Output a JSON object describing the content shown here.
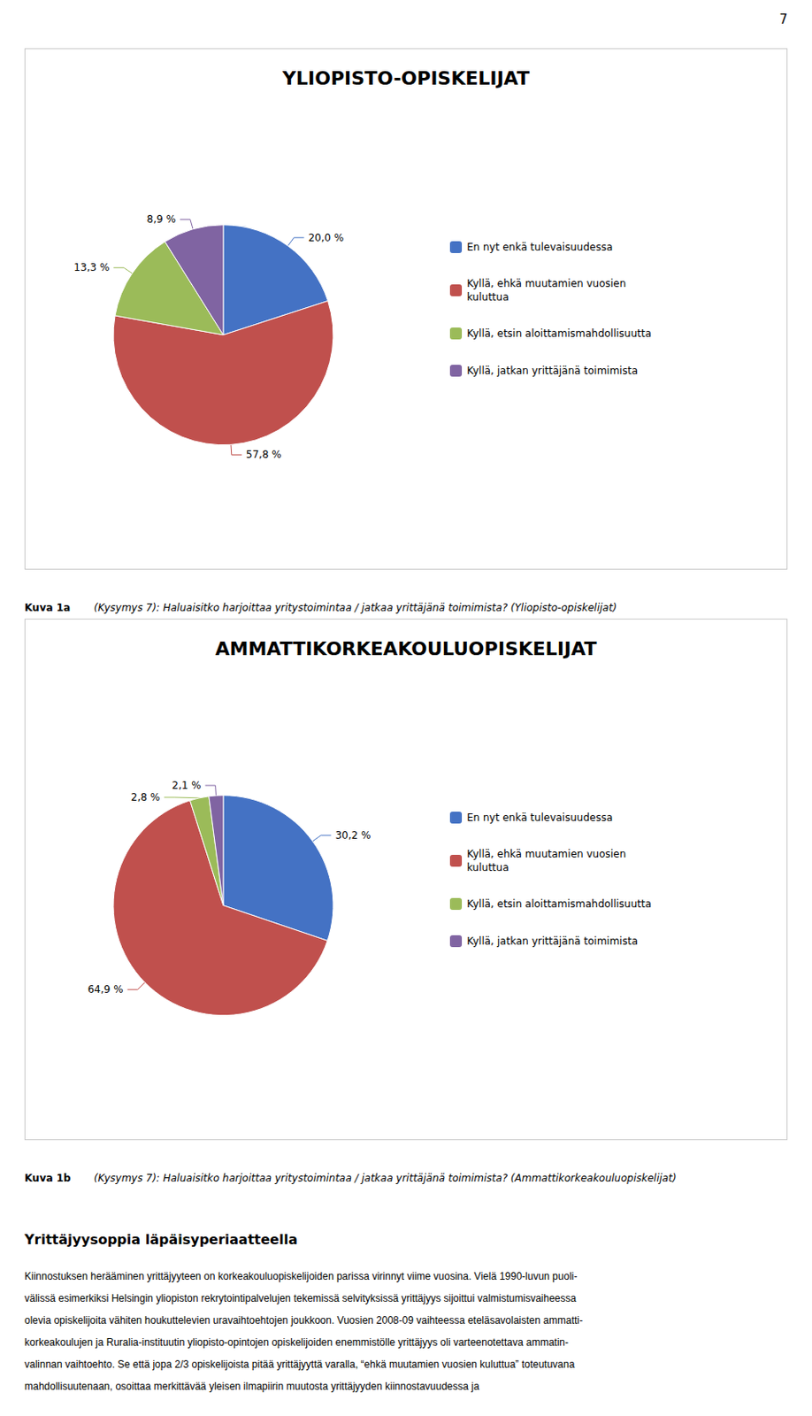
{
  "page_number": "7",
  "chart_data": [
    {
      "type": "pie",
      "title": "YLIOPISTO-OPISKELIJAT",
      "categories": [
        "En nyt enkä tulevaisuudessa",
        "Kyllä, ehkä muutamien vuosien\nkuluttua",
        "Kyllä, etsin aloittamismahdollisuutta",
        "Kyllä, jatkan yrittäjänä toimimista"
      ],
      "values": [
        20.0,
        57.8,
        13.3,
        8.9
      ],
      "value_labels": [
        "20,0 %",
        "57,8 %",
        "13,3 %",
        "8,9 %"
      ],
      "colors": [
        "#4472C4",
        "#C0504D",
        "#9BBB59",
        "#8064A2"
      ],
      "data_labels": true,
      "legend": "right",
      "annotations": [
        "Kuva 1a",
        "(Kysymys 7): Haluaisitko harjoittaa yritystoimintaa / jatkaa yrittäjänä toimimista? (Yliopisto-opiskelijat)"
      ]
    },
    {
      "type": "pie",
      "title": "AMMATTIKORKEAKOULUOPISKELIJAT",
      "categories": [
        "En nyt enkä tulevaisuudessa",
        "Kyllä, ehkä muutamien vuosien\nkuluttua",
        "Kyllä, etsin aloittamismahdollisuutta",
        "Kyllä, jatkan yrittäjänä toimimista"
      ],
      "values": [
        30.2,
        64.9,
        2.8,
        2.1
      ],
      "value_labels": [
        "30,2 %",
        "64,9 %",
        "2,8 %",
        "2,1 %"
      ],
      "colors": [
        "#4472C4",
        "#C0504D",
        "#9BBB59",
        "#8064A2"
      ],
      "data_labels": true,
      "legend": "right",
      "annotations": [
        "Kuva 1b",
        "(Kysymys 7): Haluaisitko harjoittaa yritystoimintaa / jatkaa yrittäjänä toimimista? (Ammattikorkeakouluopiskelijat)"
      ]
    }
  ],
  "body_title": "Yrittäjyysoppia läpäisyperiaatteella",
  "body_lines": [
    "Kiinnostuksen herääminen yrittäjyyteen on korkeakouluopiskelijoiden parissa virinnyt viime vuosina. Vielä 1990-luvun puoli-",
    "välissä esimerkiksi Helsingin yliopiston rekrytointipalvelujen tekemissä selvityksissä yrittäjyys sijoittui valmistumisvaiheessa",
    "olevia opiskelijoita vähiten houkuttelevien uravaihtoehtojen joukkoon. Vuosien 2008-09 vaihteessa eteläsavolaisten ammatti-",
    "korkeakoulujen ja Ruralia-instituutin yliopisto-opintojen opiskelijoiden enemmistölle yrittäjyys oli varteenotettava ammatin-",
    "valinnan vaihtoehto. Se että jopa 2/3 opiskelijoista pitää yrittäjyyttä varalla, “ehkä muutamien vuosien kuluttua” toteutuvana",
    "mahdollisuutenaan, osoittaa merkittävää yleisen ilmapiirin muutosta yrittäjyyden kiinnostavuudessa ja"
  ]
}
